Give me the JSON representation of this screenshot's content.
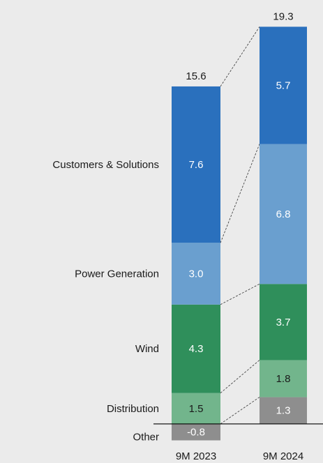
{
  "chart_data": {
    "type": "stacked_bar",
    "categories": [
      "9M 2023",
      "9M 2024"
    ],
    "series": [
      {
        "name": "Other",
        "color": "#8e8e8e",
        "label_color": "#ffffff",
        "values": [
          -0.8,
          1.3
        ],
        "value_labels": [
          "-0.8",
          "1.3"
        ]
      },
      {
        "name": "Distribution",
        "color": "#72b58c",
        "label_color": "#1a1a1a",
        "values": [
          1.5,
          1.8
        ],
        "value_labels": [
          "1.5",
          "1.8"
        ]
      },
      {
        "name": "Wind",
        "color": "#2f8f5b",
        "label_color": "#ffffff",
        "values": [
          4.3,
          3.7
        ],
        "value_labels": [
          "4.3",
          "3.7"
        ]
      },
      {
        "name": "Power Generation",
        "color": "#6a9fcf",
        "label_color": "#ffffff",
        "values": [
          3.0,
          6.8
        ],
        "value_labels": [
          "3.0",
          "6.8"
        ]
      },
      {
        "name": "Customers & Solutions",
        "color": "#2a70bd",
        "label_color": "#ffffff",
        "values": [
          7.6,
          5.7
        ],
        "value_labels": [
          "7.6",
          "5.7"
        ]
      }
    ],
    "totals": [
      15.6,
      19.3
    ],
    "ylim": [
      -1.9,
      20.6
    ]
  }
}
